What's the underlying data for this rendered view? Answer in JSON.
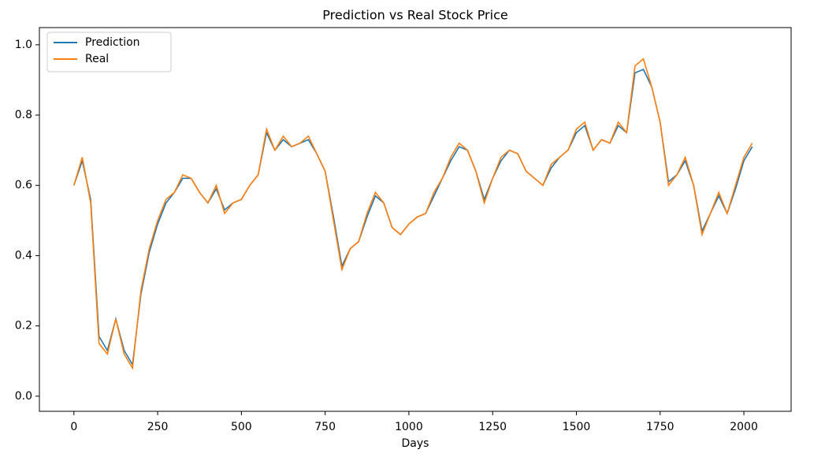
{
  "chart_data": {
    "type": "line",
    "title": "Prediction vs Real Stock Price",
    "xlabel": "Days",
    "x": [
      0,
      25,
      50,
      75,
      100,
      125,
      150,
      175,
      200,
      225,
      250,
      275,
      300,
      325,
      350,
      375,
      400,
      425,
      450,
      475,
      500,
      525,
      550,
      575,
      600,
      625,
      650,
      675,
      700,
      725,
      750,
      775,
      800,
      825,
      850,
      875,
      900,
      925,
      950,
      975,
      1000,
      1025,
      1050,
      1075,
      1100,
      1125,
      1150,
      1175,
      1200,
      1225,
      1250,
      1275,
      1300,
      1325,
      1350,
      1375,
      1400,
      1425,
      1450,
      1475,
      1500,
      1525,
      1550,
      1575,
      1600,
      1625,
      1650,
      1675,
      1700,
      1725,
      1750,
      1775,
      1800,
      1825,
      1850,
      1875,
      1900,
      1925,
      1950,
      1975,
      2000,
      2025
    ],
    "series": [
      {
        "name": "Prediction",
        "color": "#1f77b4",
        "values": [
          0.6,
          0.67,
          0.56,
          0.17,
          0.13,
          0.22,
          0.13,
          0.09,
          0.29,
          0.41,
          0.49,
          0.55,
          0.58,
          0.62,
          0.62,
          0.58,
          0.55,
          0.59,
          0.53,
          0.55,
          0.56,
          0.6,
          0.63,
          0.75,
          0.7,
          0.73,
          0.71,
          0.72,
          0.73,
          0.69,
          0.64,
          0.51,
          0.37,
          0.42,
          0.44,
          0.51,
          0.57,
          0.55,
          0.48,
          0.46,
          0.49,
          0.51,
          0.52,
          0.57,
          0.62,
          0.67,
          0.71,
          0.7,
          0.64,
          0.56,
          0.62,
          0.67,
          0.7,
          0.69,
          0.64,
          0.62,
          0.6,
          0.65,
          0.68,
          0.7,
          0.75,
          0.77,
          0.7,
          0.73,
          0.72,
          0.77,
          0.75,
          0.92,
          0.93,
          0.88,
          0.78,
          0.61,
          0.63,
          0.67,
          0.6,
          0.47,
          0.52,
          0.57,
          0.52,
          0.59,
          0.67,
          0.71
        ]
      },
      {
        "name": "Real",
        "color": "#ff7f0e",
        "values": [
          0.6,
          0.68,
          0.55,
          0.15,
          0.12,
          0.22,
          0.12,
          0.08,
          0.3,
          0.42,
          0.5,
          0.56,
          0.58,
          0.63,
          0.62,
          0.58,
          0.55,
          0.6,
          0.52,
          0.55,
          0.56,
          0.6,
          0.63,
          0.76,
          0.7,
          0.74,
          0.71,
          0.72,
          0.74,
          0.69,
          0.64,
          0.5,
          0.36,
          0.42,
          0.44,
          0.52,
          0.58,
          0.55,
          0.48,
          0.46,
          0.49,
          0.51,
          0.52,
          0.58,
          0.62,
          0.68,
          0.72,
          0.7,
          0.64,
          0.55,
          0.62,
          0.68,
          0.7,
          0.69,
          0.64,
          0.62,
          0.6,
          0.66,
          0.68,
          0.7,
          0.76,
          0.78,
          0.7,
          0.73,
          0.72,
          0.78,
          0.75,
          0.94,
          0.96,
          0.88,
          0.78,
          0.6,
          0.63,
          0.68,
          0.6,
          0.46,
          0.52,
          0.58,
          0.52,
          0.6,
          0.68,
          0.72
        ]
      }
    ],
    "xlim": [
      -103,
      2141
    ],
    "ylim": [
      -0.043,
      1.049
    ],
    "xticks": [
      0,
      250,
      500,
      750,
      1000,
      1250,
      1500,
      1750,
      2000
    ],
    "yticks": [
      {
        "value": 0,
        "label": "0.0"
      },
      0.2,
      0.4,
      0.6,
      0.8,
      {
        "value": 1,
        "label": "1.0"
      }
    ],
    "legend": "upper left",
    "grid": false
  }
}
